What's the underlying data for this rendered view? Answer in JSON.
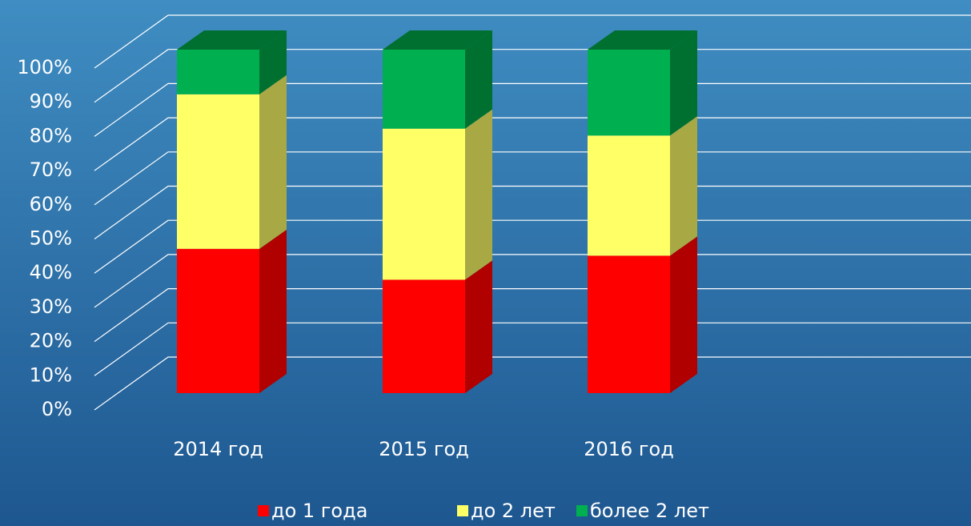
{
  "chart_data": {
    "type": "bar3d_stacked",
    "categories": [
      "2014 год",
      "2015 год",
      "2016 год"
    ],
    "series": [
      {
        "name": "до 1 года",
        "color": "#ff0000",
        "side_color": "#b00000",
        "values": [
          42,
          33,
          40
        ]
      },
      {
        "name": "до 2 лет",
        "color": "#ffff66",
        "side_color": "#a8a845",
        "values": [
          45,
          44,
          35
        ]
      },
      {
        "name": "более 2 лет",
        "color": "#00b050",
        "side_color": "#007030",
        "values": [
          13,
          23,
          25
        ]
      }
    ],
    "ylim": [
      0,
      100
    ],
    "yticks": [
      {
        "value": 0,
        "label": "0%"
      },
      {
        "value": 10,
        "label": "10%"
      },
      {
        "value": 20,
        "label": "20%"
      },
      {
        "value": 30,
        "label": "30%"
      },
      {
        "value": 40,
        "label": "40%"
      },
      {
        "value": 50,
        "label": "50%"
      },
      {
        "value": 60,
        "label": "60%"
      },
      {
        "value": 70,
        "label": "70%"
      },
      {
        "value": 80,
        "label": "80%"
      },
      {
        "value": 90,
        "label": "90%"
      },
      {
        "value": 100,
        "label": "100%"
      }
    ],
    "grid": true
  }
}
